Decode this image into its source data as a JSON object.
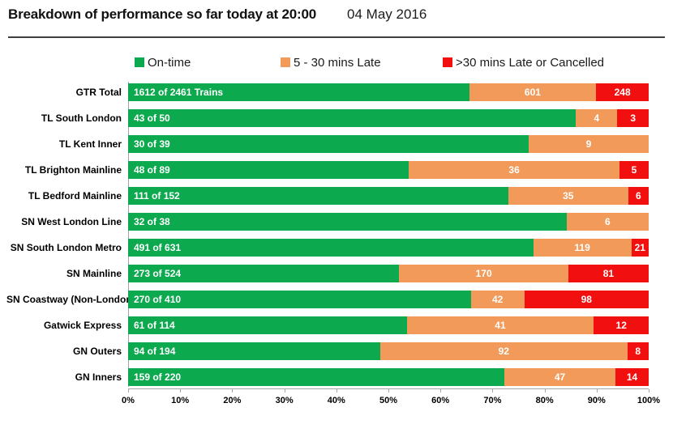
{
  "header": {
    "title": "Breakdown of performance so far today at 20:00",
    "date": "04 May 2016"
  },
  "chart_data": {
    "type": "bar",
    "stacked": true,
    "orientation": "horizontal",
    "title": "Breakdown of performance so far today at 20:00",
    "xlabel": "",
    "ylabel": "",
    "x_axis": {
      "min": 0,
      "max": 100,
      "tick_labels": [
        "0%",
        "10%",
        "20%",
        "30%",
        "40%",
        "50%",
        "60%",
        "70%",
        "80%",
        "90%",
        "100%"
      ]
    },
    "legend": [
      {
        "label": "On-time",
        "color": "#0da94f"
      },
      {
        "label": "5 - 30 mins Late",
        "color": "#f29a59"
      },
      {
        "label": ">30 mins Late or Cancelled",
        "color": "#f20f0f"
      }
    ],
    "legend_position": "top",
    "categories": [
      "GTR Total",
      "TL South London",
      "TL Kent Inner",
      "TL Brighton Mainline",
      "TL Bedford Mainline",
      "SN West London Line",
      "SN South London Metro",
      "SN Mainline",
      "SN Coastway (Non-London)",
      "Gatwick Express",
      "GN Outers",
      "GN Inners"
    ],
    "totals": [
      2461,
      50,
      39,
      89,
      152,
      38,
      631,
      524,
      410,
      114,
      194,
      220
    ],
    "series": [
      {
        "name": "On-time",
        "values": [
          1612,
          43,
          30,
          48,
          111,
          32,
          491,
          273,
          270,
          61,
          94,
          159
        ]
      },
      {
        "name": "5 - 30 mins Late",
        "values": [
          601,
          4,
          9,
          36,
          35,
          6,
          119,
          170,
          42,
          41,
          92,
          47
        ]
      },
      {
        "name": ">30 mins Late or Cancelled",
        "values": [
          248,
          3,
          0,
          5,
          6,
          0,
          21,
          81,
          98,
          12,
          8,
          14
        ]
      }
    ],
    "rows": [
      {
        "category": "GTR Total",
        "total": 2461,
        "on_time": 1612,
        "late": 601,
        "very_late": 248,
        "on_time_label": "1612 of 2461 Trains",
        "late_label": "601",
        "very_late_label": "248"
      },
      {
        "category": "TL South London",
        "total": 50,
        "on_time": 43,
        "late": 4,
        "very_late": 3,
        "on_time_label": "43 of 50",
        "late_label": "4",
        "very_late_label": "3"
      },
      {
        "category": "TL Kent Inner",
        "total": 39,
        "on_time": 30,
        "late": 9,
        "very_late": 0,
        "on_time_label": "30 of 39",
        "late_label": "9",
        "very_late_label": ""
      },
      {
        "category": "TL Brighton Mainline",
        "total": 89,
        "on_time": 48,
        "late": 36,
        "very_late": 5,
        "on_time_label": "48 of 89",
        "late_label": "36",
        "very_late_label": "5"
      },
      {
        "category": "TL Bedford Mainline",
        "total": 152,
        "on_time": 111,
        "late": 35,
        "very_late": 6,
        "on_time_label": "111 of 152",
        "late_label": "35",
        "very_late_label": "6"
      },
      {
        "category": "SN West London Line",
        "total": 38,
        "on_time": 32,
        "late": 6,
        "very_late": 0,
        "on_time_label": "32 of 38",
        "late_label": "6",
        "very_late_label": ""
      },
      {
        "category": "SN South London Metro",
        "total": 631,
        "on_time": 491,
        "late": 119,
        "very_late": 21,
        "on_time_label": "491 of 631",
        "late_label": "119",
        "very_late_label": "21"
      },
      {
        "category": "SN Mainline",
        "total": 524,
        "on_time": 273,
        "late": 170,
        "very_late": 81,
        "on_time_label": "273 of 524",
        "late_label": "170",
        "very_late_label": "81"
      },
      {
        "category": "SN Coastway (Non-London)",
        "total": 410,
        "on_time": 270,
        "late": 42,
        "very_late": 98,
        "on_time_label": "270 of 410",
        "late_label": "42",
        "very_late_label": "98"
      },
      {
        "category": "Gatwick Express",
        "total": 114,
        "on_time": 61,
        "late": 41,
        "very_late": 12,
        "on_time_label": "61 of 114",
        "late_label": "41",
        "very_late_label": "12"
      },
      {
        "category": "GN Outers",
        "total": 194,
        "on_time": 94,
        "late": 92,
        "very_late": 8,
        "on_time_label": "94 of 194",
        "late_label": "92",
        "very_late_label": "8"
      },
      {
        "category": "GN Inners",
        "total": 220,
        "on_time": 159,
        "late": 47,
        "very_late": 14,
        "on_time_label": "159 of 220",
        "late_label": "47",
        "very_late_label": "14"
      }
    ]
  }
}
